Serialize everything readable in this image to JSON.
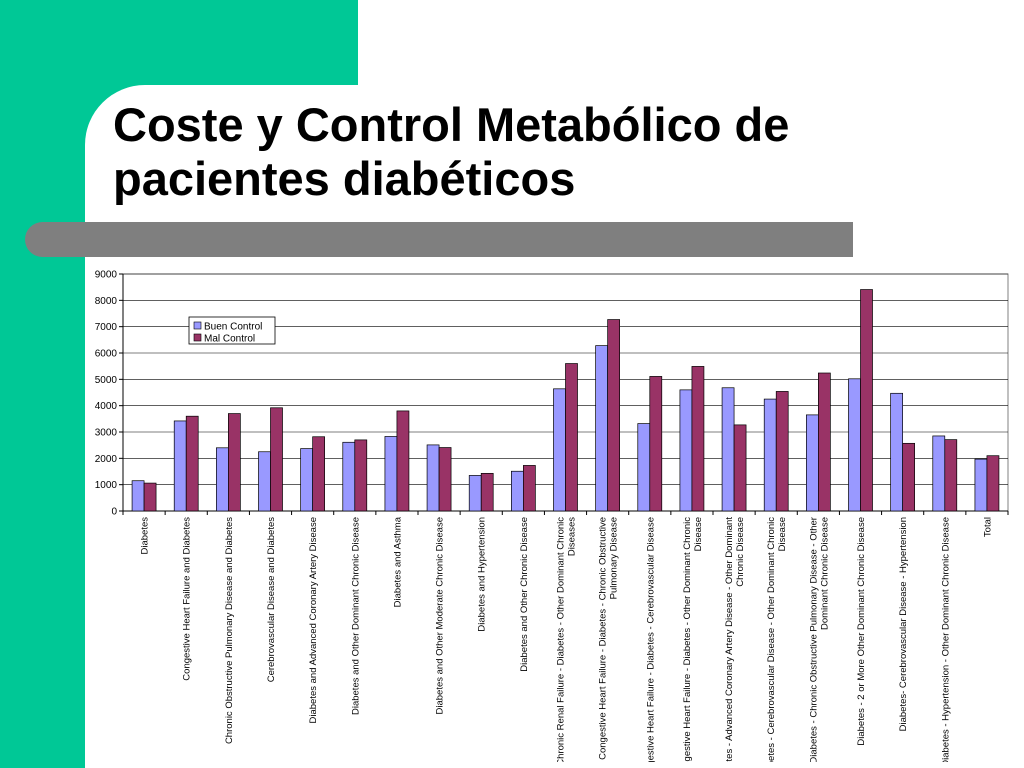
{
  "slide": {
    "title_line1": "Coste y Control Metabólico de",
    "title_line2": "pacientes diabéticos",
    "accent_color": "#00c896",
    "divider_color": "#7f7f7f"
  },
  "chart_data": {
    "type": "bar",
    "title": "",
    "xlabel": "",
    "ylabel": "",
    "ylim": [
      0,
      9000
    ],
    "yticks": [
      0,
      1000,
      2000,
      3000,
      4000,
      5000,
      6000,
      7000,
      8000,
      9000
    ],
    "grid": true,
    "legend_position": "top-left",
    "categories": [
      [
        "Diabetes"
      ],
      [
        "Congestive Heart Failure and Diabetes"
      ],
      [
        "Chronic Obstructive Pulmonary Disease and Diabetes"
      ],
      [
        "Cerebrovascular Disease and Diabetes"
      ],
      [
        "Diabetes and Advanced Coronary Artery Disease"
      ],
      [
        "Diabetes and Other Dominant Chronic Disease"
      ],
      [
        "Diabetes and Asthma"
      ],
      [
        "Diabetes and Other Moderate Chronic Disease"
      ],
      [
        "Diabetes and Hypertension"
      ],
      [
        "Diabetes and Other Chronic Disease"
      ],
      [
        "Chronic Renal Failure - Diabetes - Other Dominant Chronic",
        "Diseases"
      ],
      [
        "Congestive Heart Failure - Diabetes - Chronic Obstructive",
        "Pulmonary Disease"
      ],
      [
        "Congestive Heart Failure - Diabetes - Cerebrovascular Disease"
      ],
      [
        "Congestive Heart Failure - Diabetes - Other Dominant Chronic",
        "Disease"
      ],
      [
        "Diabetes - Advanced Coronary Artery Disease - Other Dominant",
        "Chronic Disease"
      ],
      [
        "Diabetes - Cerebrovascular Disease - Other Dominant Chronic",
        "Disease"
      ],
      [
        "Diabetes - Chronic Obstructive Pulmonary Disease - Other",
        "Dominant Chronic Disease"
      ],
      [
        "Diabetes - 2 or More Other Dominant Chronic Disease"
      ],
      [
        "Diabetes- Cerebrovascular Disease - Hypertension"
      ],
      [
        "Diabetes - Hypertension - Other Dominant Chronic Disease"
      ],
      [
        "Total"
      ]
    ],
    "series": [
      {
        "name": "Buen Control",
        "color": "#9999ff",
        "values": [
          1150,
          3420,
          2400,
          2250,
          2370,
          2610,
          2830,
          2510,
          1350,
          1510,
          4640,
          6280,
          3320,
          4600,
          4680,
          4250,
          3650,
          5020,
          4470,
          2850,
          1970
        ]
      },
      {
        "name": "Mal Control",
        "color": "#993366",
        "values": [
          1060,
          3600,
          3700,
          3920,
          2820,
          2700,
          3800,
          2410,
          1430,
          1730,
          5600,
          7270,
          5110,
          5490,
          3270,
          4540,
          5240,
          8410,
          2570,
          2710,
          2100
        ]
      }
    ]
  }
}
